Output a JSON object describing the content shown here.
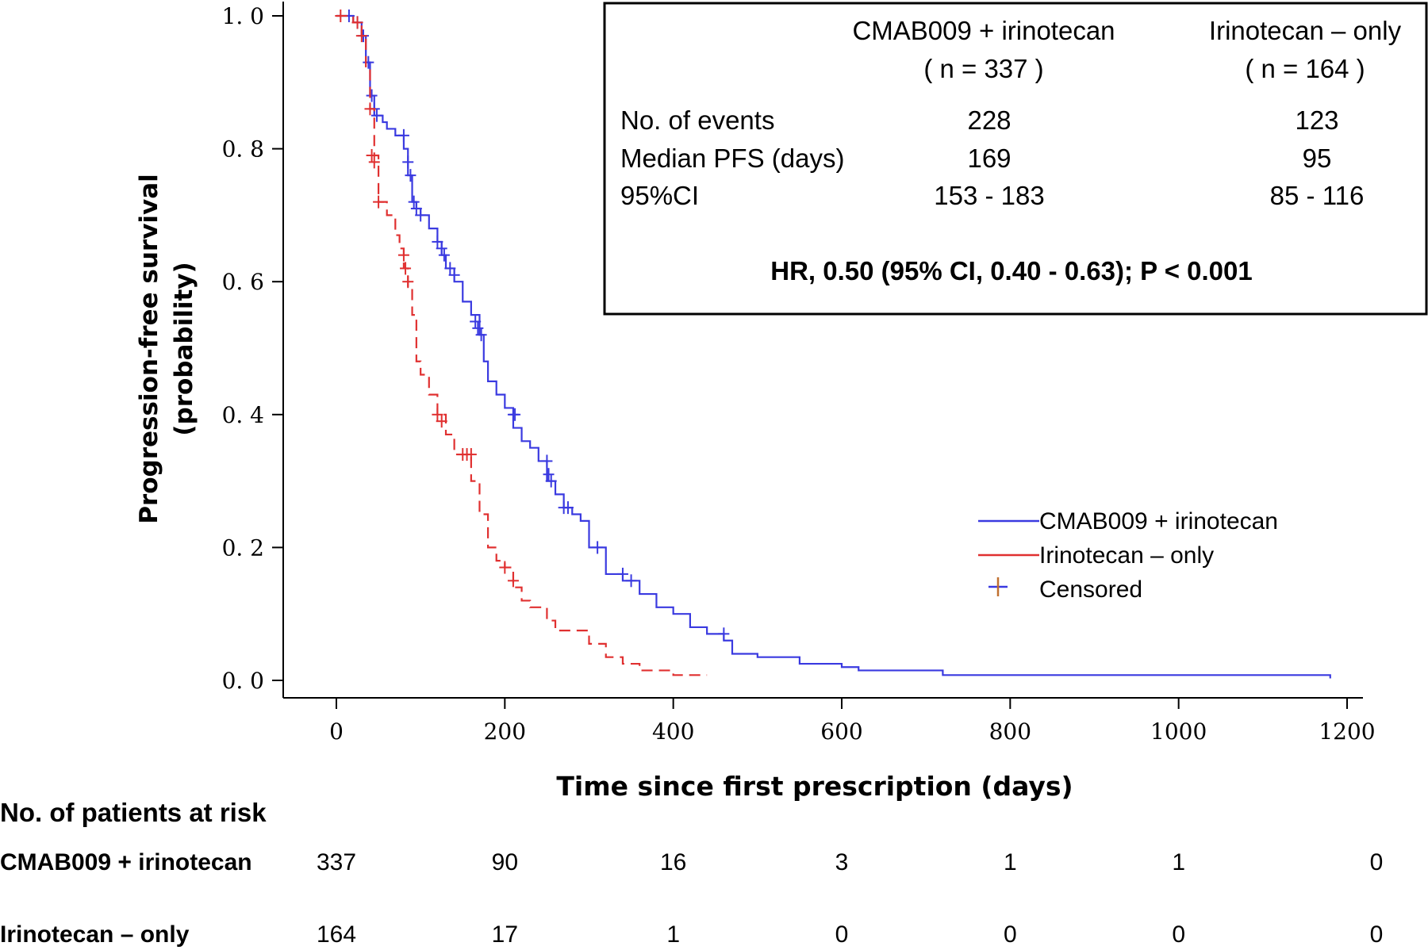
{
  "chart_data": {
    "type": "line",
    "subtype": "kaplan-meier",
    "xlabel": "Time since first prescription (days)",
    "ylabel_line1": "Progression-free survival",
    "ylabel_line2": "(probability)",
    "xlim": [
      -30,
      1200
    ],
    "ylim": [
      0,
      1
    ],
    "x_ticks": [
      0,
      200,
      400,
      600,
      800,
      1000,
      1200
    ],
    "y_ticks": [
      "0.0",
      "0.2",
      "0.4",
      "0.6",
      "0.8",
      "1.0"
    ],
    "grid": false,
    "legend_position": "right",
    "series": [
      {
        "name": "CMAB009 + irinotecan",
        "color": "#3a3ae0",
        "dash": "solid",
        "x": [
          0,
          20,
          30,
          35,
          40,
          45,
          55,
          60,
          70,
          80,
          85,
          90,
          95,
          100,
          110,
          120,
          125,
          130,
          140,
          150,
          160,
          170,
          175,
          180,
          190,
          200,
          210,
          220,
          230,
          240,
          250,
          260,
          270,
          280,
          290,
          300,
          320,
          340,
          360,
          380,
          400,
          420,
          440,
          460,
          470,
          500,
          550,
          600,
          620,
          700,
          720,
          800,
          900,
          1000,
          1100,
          1180
        ],
        "y": [
          1.0,
          0.99,
          0.97,
          0.93,
          0.88,
          0.85,
          0.84,
          0.83,
          0.82,
          0.8,
          0.76,
          0.72,
          0.71,
          0.7,
          0.68,
          0.66,
          0.64,
          0.62,
          0.6,
          0.57,
          0.55,
          0.52,
          0.48,
          0.45,
          0.43,
          0.41,
          0.38,
          0.36,
          0.35,
          0.33,
          0.3,
          0.28,
          0.26,
          0.25,
          0.24,
          0.2,
          0.16,
          0.15,
          0.13,
          0.11,
          0.1,
          0.08,
          0.07,
          0.06,
          0.04,
          0.035,
          0.025,
          0.02,
          0.015,
          0.015,
          0.008,
          0.008,
          0.008,
          0.008,
          0.008,
          0.003
        ],
        "censored_x": [
          15,
          25,
          32,
          38,
          42,
          45,
          48,
          80,
          85,
          88,
          92,
          95,
          100,
          120,
          125,
          128,
          135,
          140,
          165,
          168,
          172,
          210,
          212,
          250,
          252,
          255,
          270,
          275,
          310,
          340,
          350,
          460
        ],
        "censored_y": [
          1.0,
          0.99,
          0.97,
          0.93,
          0.88,
          0.86,
          0.85,
          0.82,
          0.78,
          0.76,
          0.72,
          0.71,
          0.7,
          0.66,
          0.65,
          0.64,
          0.62,
          0.61,
          0.54,
          0.53,
          0.52,
          0.4,
          0.4,
          0.33,
          0.31,
          0.3,
          0.26,
          0.26,
          0.2,
          0.16,
          0.15,
          0.07
        ]
      },
      {
        "name": "Irinotecan – only",
        "color": "#e03030",
        "dash": "dashed",
        "x": [
          0,
          20,
          30,
          35,
          40,
          45,
          50,
          60,
          70,
          75,
          80,
          85,
          90,
          95,
          100,
          110,
          120,
          130,
          140,
          150,
          160,
          170,
          180,
          190,
          200,
          210,
          220,
          230,
          250,
          260,
          280,
          300,
          320,
          340,
          360,
          400,
          440
        ],
        "y": [
          1.0,
          0.99,
          0.97,
          0.92,
          0.86,
          0.79,
          0.72,
          0.7,
          0.67,
          0.65,
          0.62,
          0.59,
          0.55,
          0.48,
          0.46,
          0.43,
          0.4,
          0.37,
          0.34,
          0.34,
          0.3,
          0.25,
          0.2,
          0.18,
          0.17,
          0.14,
          0.12,
          0.11,
          0.09,
          0.075,
          0.075,
          0.055,
          0.035,
          0.025,
          0.015,
          0.008,
          0.008
        ],
        "censored_x": [
          5,
          25,
          30,
          40,
          42,
          45,
          50,
          80,
          82,
          85,
          120,
          125,
          150,
          155,
          160,
          200,
          210
        ],
        "censored_y": [
          1.0,
          0.99,
          0.97,
          0.86,
          0.79,
          0.78,
          0.72,
          0.64,
          0.62,
          0.6,
          0.4,
          0.39,
          0.34,
          0.34,
          0.34,
          0.17,
          0.15
        ]
      }
    ],
    "legend": {
      "items": [
        "CMAB009 + irinotecan",
        "Irinotecan – only"
      ],
      "censored_label": "Censored"
    },
    "stats_box": {
      "group1_name": "CMAB009 + irinotecan",
      "group1_n": "( n = 337 )",
      "group2_name": "Irinotecan – only",
      "group2_n": "( n = 164 )",
      "rows": [
        {
          "label": "No. of events",
          "g1": "228",
          "g2": "123"
        },
        {
          "label": "Median PFS (days)",
          "g1": "169",
          "g2": "95"
        },
        {
          "label": "95%CI",
          "g1": "153 - 183",
          "g2": "85 - 116"
        }
      ],
      "hr_text": "HR, 0.50 (95% CI, 0.40 - 0.63); P < 0.001"
    },
    "risk_table": {
      "title": "No. of patients at risk",
      "rows": [
        {
          "label": "CMAB009 + irinotecan",
          "values": [
            "337",
            "90",
            "16",
            "3",
            "1",
            "1",
            "0"
          ]
        },
        {
          "label": "Irinotecan – only",
          "values": [
            "164",
            "17",
            "1",
            "0",
            "0",
            "0",
            "0"
          ]
        }
      ]
    }
  }
}
